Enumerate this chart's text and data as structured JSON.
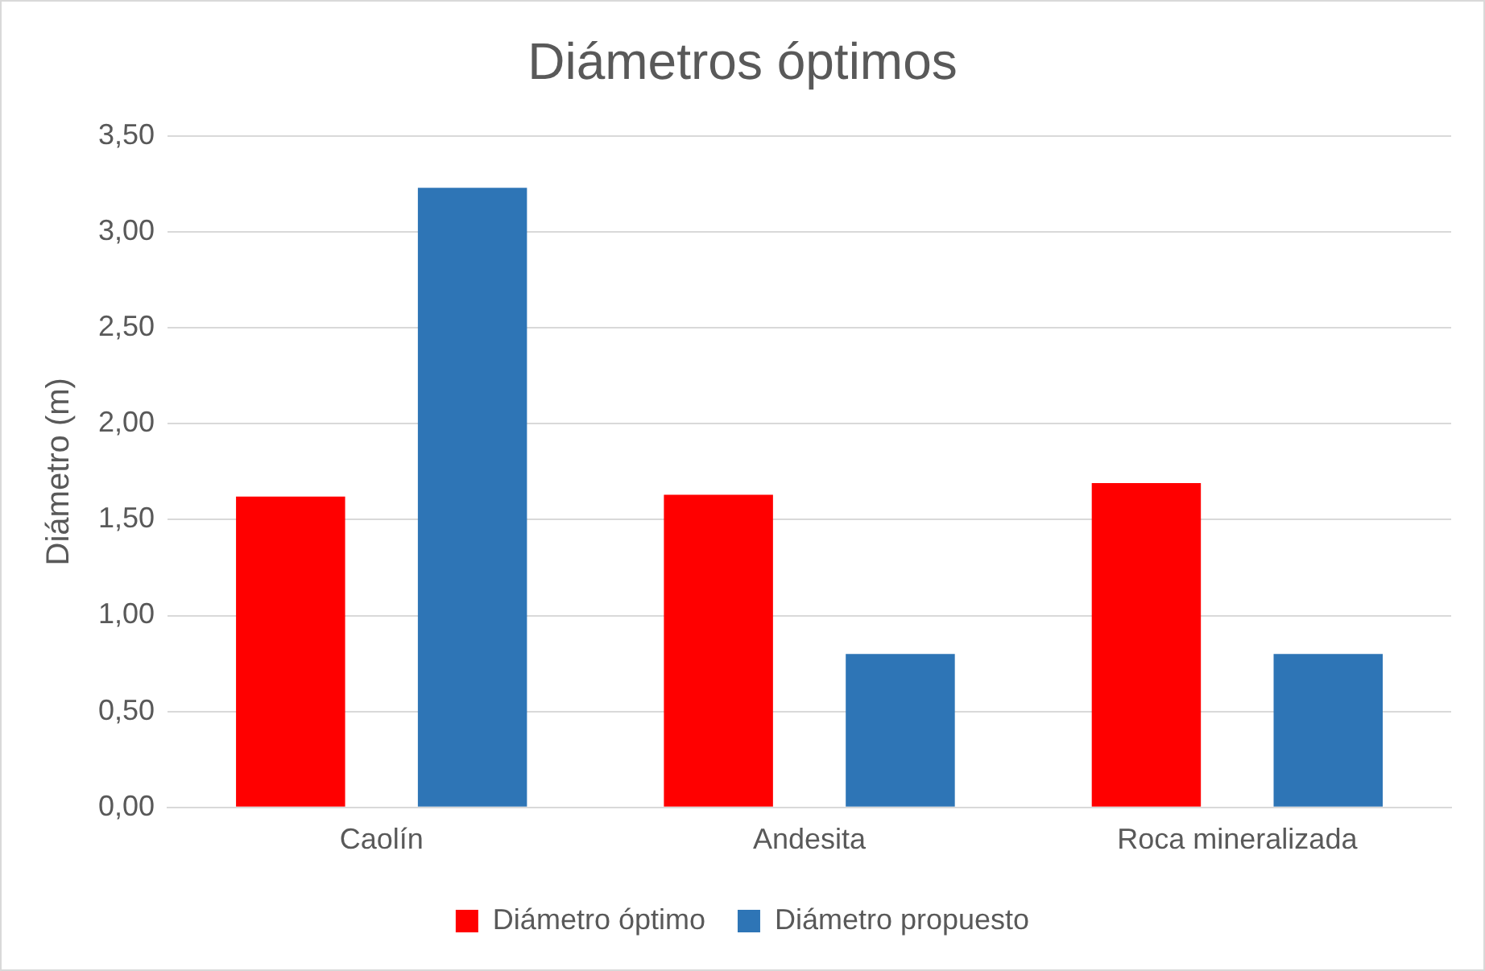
{
  "chart_data": {
    "type": "bar",
    "title": "Diámetros óptimos",
    "ylabel": "Diámetro (m)",
    "categories": [
      "Caolín",
      "Andesita",
      "Roca mineralizada"
    ],
    "series": [
      {
        "name": "Diámetro óptimo",
        "color": "#ff0000",
        "values": [
          1.62,
          1.63,
          1.69
        ]
      },
      {
        "name": "Diámetro propuesto",
        "color": "#2e75b6",
        "values": [
          3.23,
          0.8,
          0.8
        ]
      }
    ],
    "ylim": [
      0,
      3.5
    ],
    "yticks": [
      {
        "value": 0,
        "label": "0,00"
      },
      {
        "value": 0.5,
        "label": "0,50"
      },
      {
        "value": 1,
        "label": "1,00"
      },
      {
        "value": 1.5,
        "label": "1,50"
      },
      {
        "value": 2,
        "label": "2,00"
      },
      {
        "value": 2.5,
        "label": "2,50"
      },
      {
        "value": 3,
        "label": "3,00"
      },
      {
        "value": 3.5,
        "label": "3,50"
      }
    ],
    "grid": "y",
    "legend": "bottom"
  }
}
